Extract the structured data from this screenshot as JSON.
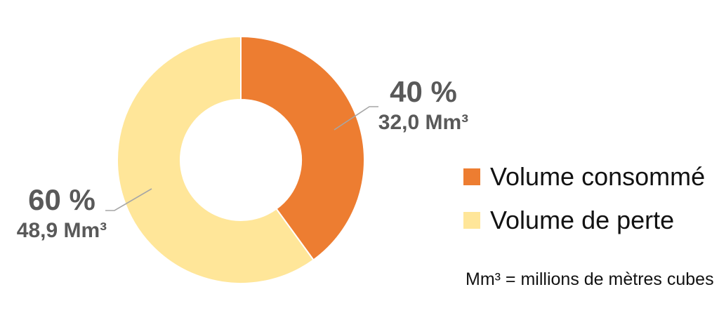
{
  "chart_data": {
    "type": "pie",
    "variant": "donut",
    "unit": "Mm³",
    "segments": [
      {
        "id": "consomme",
        "label": "Volume consommé",
        "percent": 40,
        "value": 32.0,
        "percent_label": "40 %",
        "value_label": "32,0 Mm³",
        "color": "#ED7D31"
      },
      {
        "id": "perte",
        "label": "Volume de perte",
        "percent": 60,
        "value": 48.9,
        "percent_label": "60 %",
        "value_label": "48,9 Mm³",
        "color": "#FFE699"
      }
    ],
    "start_angle_deg": 0,
    "direction": "clockwise",
    "inner_radius_ratio": 0.49,
    "legend_position": "right",
    "callout_label_color": "#595959",
    "leader_line_color": "#A6A6A6",
    "footnote": "Mm³ = millions de mètres cubes"
  }
}
